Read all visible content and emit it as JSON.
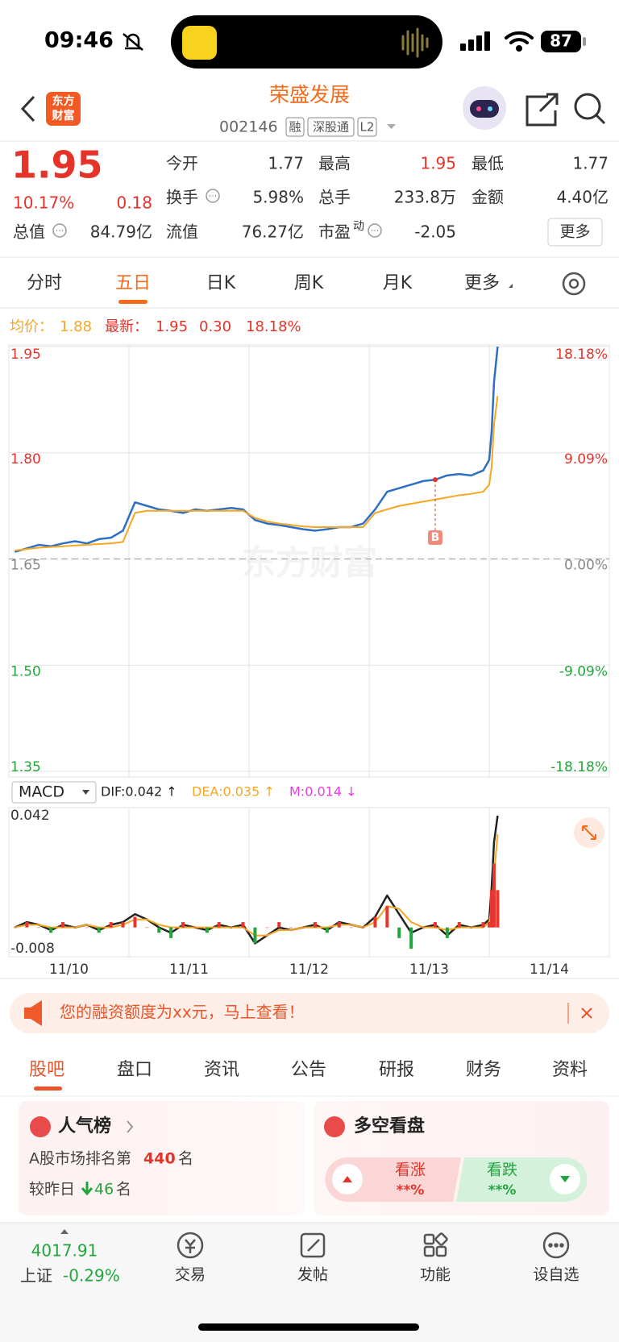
{
  "status_bar": {
    "time": "09:46",
    "battery": "87"
  },
  "header": {
    "logo": [
      "东方",
      "财富"
    ],
    "title": "荣盛发展",
    "code": "002146",
    "tags": [
      "融",
      "深股通",
      "L2"
    ]
  },
  "quote": {
    "price": "1.95",
    "change_pct": "10.17%",
    "change": "0.18",
    "fields": [
      {
        "label": "今开",
        "value": "1.77"
      },
      {
        "label": "最高",
        "value": "1.95"
      },
      {
        "label": "最低",
        "value": "1.77"
      },
      {
        "label": "换手",
        "value": "5.98%"
      },
      {
        "label": "总手",
        "value": "233.8万"
      },
      {
        "label": "金额",
        "value": "4.40亿"
      },
      {
        "label": "总值",
        "value": "84.79亿"
      },
      {
        "label": "流值",
        "value": "76.27亿"
      },
      {
        "label": "市盈",
        "label_sup": "动",
        "value": "-2.05"
      }
    ],
    "more": "更多"
  },
  "tabs": [
    "分时",
    "五日",
    "日K",
    "周K",
    "月K",
    "更多"
  ],
  "chart_info": {
    "avg_label": "均价：",
    "avg": "1.88",
    "latest_label": "最新：",
    "latest": "1.95",
    "change": "0.30",
    "change_pct": "18.18%"
  },
  "watermark": "东方财富",
  "chart_data": [
    {
      "type": "line",
      "grid": true,
      "marker_label": "B",
      "x": [
        0.05,
        0.15,
        0.25,
        0.35,
        0.45,
        0.55,
        0.65,
        0.75,
        0.85,
        0.95,
        1.05,
        1.15,
        1.25,
        1.35,
        1.45,
        1.55,
        1.65,
        1.75,
        1.85,
        1.95,
        2.05,
        2.15,
        2.25,
        2.35,
        2.45,
        2.55,
        2.65,
        2.75,
        2.85,
        2.95,
        3.05,
        3.15,
        3.25,
        3.35,
        3.45,
        3.55,
        3.65,
        3.75,
        3.85,
        3.95,
        4.0,
        4.02,
        4.04,
        4.07
      ],
      "xlim": [
        0,
        5
      ],
      "ylim": [
        1.35,
        1.95
      ],
      "yticks": [
        1.95,
        {
          "value": 1.8,
          "label": "1.80"
        },
        1.65,
        {
          "value": 1.5,
          "label": "1.50"
        },
        1.35
      ],
      "y2lim": [
        -18.18,
        18.18
      ],
      "y2ticks": [
        {
          "value": 18.18,
          "label": "18.18%"
        },
        {
          "value": 9.09,
          "label": "9.09%"
        },
        {
          "value": 0,
          "label": "0.00%"
        },
        {
          "value": -9.09,
          "label": "-9.09%"
        },
        {
          "value": -18.18,
          "label": "-18.18%"
        }
      ],
      "series": [
        {
          "color": "#2e6fc4",
          "values": [
            1.66,
            1.665,
            1.67,
            1.668,
            1.672,
            1.675,
            1.672,
            1.678,
            1.68,
            1.69,
            1.73,
            1.725,
            1.72,
            1.718,
            1.715,
            1.72,
            1.718,
            1.72,
            1.722,
            1.72,
            1.705,
            1.7,
            1.698,
            1.695,
            1.692,
            1.69,
            1.692,
            1.695,
            1.695,
            1.7,
            1.72,
            1.745,
            1.75,
            1.755,
            1.76,
            1.762,
            1.768,
            1.77,
            1.768,
            1.775,
            1.79,
            1.83,
            1.9,
            1.95
          ]
        },
        {
          "color": "#f5a623",
          "values": [
            1.662,
            1.664,
            1.666,
            1.667,
            1.668,
            1.669,
            1.67,
            1.671,
            1.672,
            1.674,
            1.715,
            1.718,
            1.718,
            1.718,
            1.718,
            1.718,
            1.718,
            1.718,
            1.718,
            1.718,
            1.708,
            1.703,
            1.7,
            1.698,
            1.696,
            1.695,
            1.695,
            1.695,
            1.695,
            1.695,
            1.715,
            1.72,
            1.725,
            1.728,
            1.731,
            1.734,
            1.737,
            1.74,
            1.742,
            1.745,
            1.755,
            1.78,
            1.84,
            1.88
          ]
        }
      ]
    },
    {
      "type": "line",
      "x": [
        0.05,
        0.15,
        0.25,
        0.35,
        0.45,
        0.55,
        0.65,
        0.75,
        0.85,
        0.95,
        1.05,
        1.15,
        1.25,
        1.35,
        1.45,
        1.55,
        1.65,
        1.75,
        1.85,
        1.95,
        2.05,
        2.15,
        2.25,
        2.35,
        2.45,
        2.55,
        2.65,
        2.75,
        2.85,
        2.95,
        3.05,
        3.15,
        3.25,
        3.35,
        3.45,
        3.55,
        3.65,
        3.75,
        3.85,
        3.95,
        4.0,
        4.02,
        4.04,
        4.07
      ],
      "xlim": [
        0,
        5
      ],
      "xticks": [
        {
          "value": 0.5,
          "label": "11/10"
        },
        {
          "value": 1.5,
          "label": "11/11"
        },
        {
          "value": 2.5,
          "label": "11/12"
        },
        {
          "value": 3.5,
          "label": "11/13"
        },
        {
          "value": 4.5,
          "label": "11/14"
        }
      ],
      "ylim": [
        -0.011,
        0.045
      ],
      "yticks": [
        0.042,
        -0.008
      ],
      "series": [
        {
          "name": "DIF:0.042 ↑",
          "color": "#222222",
          "values": [
            0.0,
            0.002,
            0.001,
            -0.001,
            0.001,
            0.0,
            0.001,
            -0.001,
            0.001,
            0.002,
            0.005,
            0.003,
            0.0,
            -0.002,
            0.001,
            0.0,
            -0.001,
            0.001,
            0.0,
            0.001,
            -0.006,
            -0.003,
            0.0,
            -0.001,
            0.0,
            0.001,
            -0.001,
            0.002,
            0.001,
            0.0,
            0.004,
            0.012,
            0.005,
            -0.002,
            0.0,
            0.001,
            -0.003,
            0.001,
            0.0,
            0.001,
            0.003,
            0.015,
            0.032,
            0.042
          ]
        },
        {
          "name": "DEA:0.035 ↑",
          "color": "#f5a623",
          "values": [
            0.0,
            0.001,
            0.001,
            0.0,
            0.0,
            0.0,
            0.001,
            0.0,
            0.0,
            0.001,
            0.003,
            0.003,
            0.001,
            0.0,
            0.0,
            0.0,
            0.0,
            0.0,
            0.0,
            0.0,
            -0.003,
            -0.003,
            -0.001,
            -0.001,
            0.0,
            0.0,
            0.0,
            0.001,
            0.001,
            0.0,
            0.002,
            0.008,
            0.007,
            0.002,
            0.0,
            0.0,
            -0.001,
            0.0,
            0.0,
            0.0,
            0.002,
            0.008,
            0.02,
            0.035
          ]
        },
        {
          "name": "M:0.014 ↓",
          "type": "bar",
          "color": "#e33ee3",
          "up_color": "#e8362f",
          "down_color": "#22a63c",
          "values": [
            0,
            0.002,
            0,
            -0.002,
            0.002,
            0,
            0,
            -0.002,
            0.002,
            0.002,
            0.004,
            0,
            -0.002,
            -0.004,
            0.002,
            0,
            -0.002,
            0.002,
            0,
            0.002,
            -0.006,
            0,
            0.002,
            0,
            0,
            0.002,
            -0.002,
            0.002,
            0,
            0,
            0.004,
            0.008,
            -0.004,
            -0.008,
            0,
            0.002,
            -0.004,
            0.002,
            0,
            0.002,
            0.002,
            0.014,
            0.024,
            0.014
          ]
        }
      ]
    }
  ],
  "indicator_select": "MACD",
  "banner": {
    "text": "您的融资额度为xx元，马上查看！"
  },
  "section_tabs": [
    "股吧",
    "盘口",
    "资讯",
    "公告",
    "研报",
    "财务",
    "资料"
  ],
  "popularity": {
    "title": "人气榜",
    "rank_prefix": "A股市场排名第",
    "rank": "440",
    "rank_suffix": "名",
    "change_prefix": "较昨日",
    "change": "46",
    "change_suffix": "名"
  },
  "sentiment": {
    "title": "多空看盘",
    "bull": "看涨",
    "bull_pct": "**%",
    "bear": "看跌",
    "bear_pct": "**%"
  },
  "index": {
    "value": "4017.91",
    "name": "上证",
    "change": "-0.29%"
  },
  "nav": [
    "交易",
    "发帖",
    "功能",
    "设自选"
  ]
}
